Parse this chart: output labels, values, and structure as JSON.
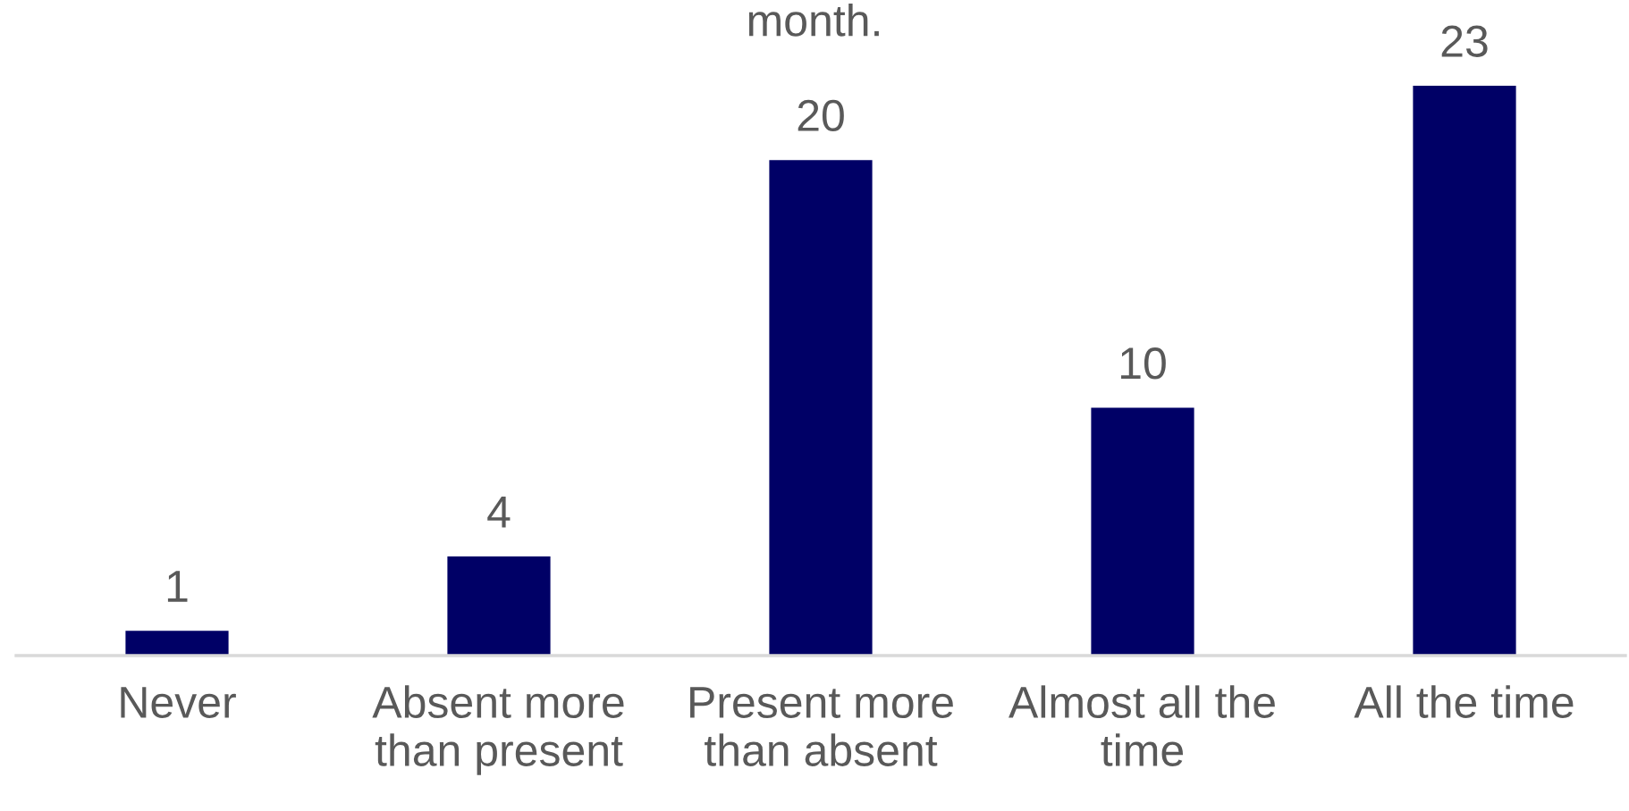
{
  "chart_data": {
    "type": "bar",
    "title": "month.",
    "categories": [
      "Never",
      "Absent more\nthan present",
      "Present more\nthan absent",
      "Almost all the\ntime",
      "All the time"
    ],
    "values": [
      1,
      4,
      20,
      10,
      23
    ],
    "color": "#000066",
    "data_labels": true,
    "tick_labels": "x"
  }
}
